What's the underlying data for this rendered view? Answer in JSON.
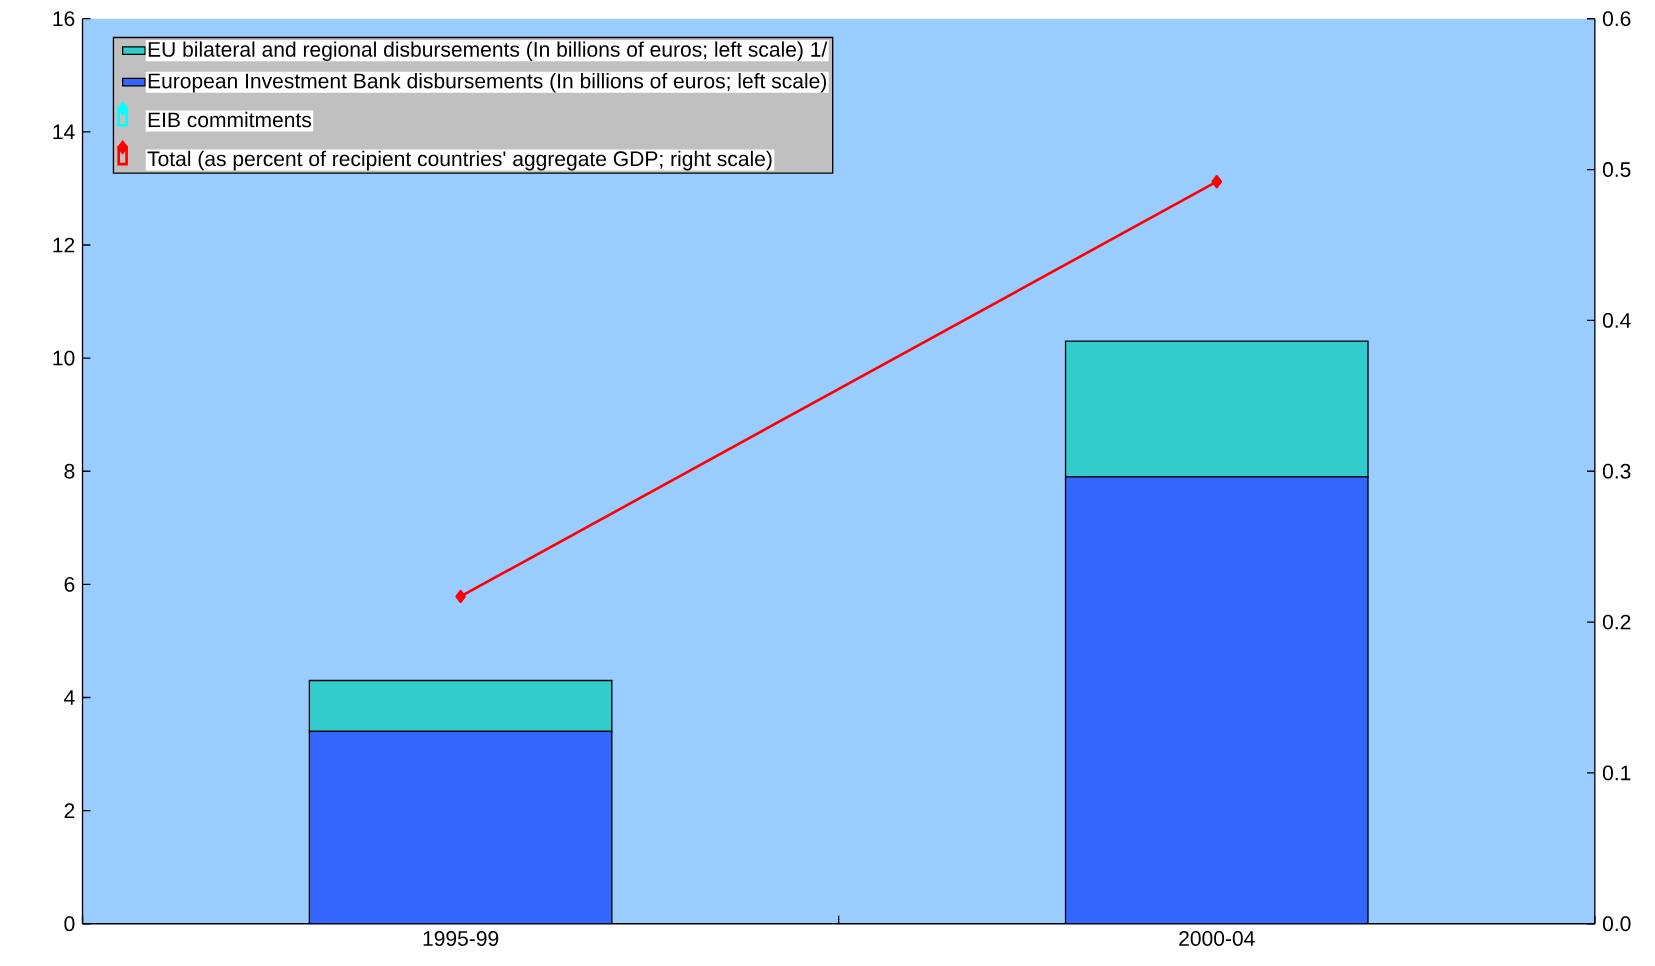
{
  "chart_data": {
    "type": "bar",
    "stacked": true,
    "categories": [
      "1995-99",
      "2000-04"
    ],
    "series": [
      {
        "name": "European  Investment Bank disbursements (In billions of euros; left scale)",
        "color": "#3366ff",
        "values": [
          3.4,
          7.9
        ]
      },
      {
        "name": "EU bilateral and regional disbursements (In billions of euros; left scale) 1/",
        "color": "#33cccc",
        "values": [
          0.9,
          2.4
        ]
      },
      {
        "name": "EIB commitments",
        "type": "line",
        "color": "#00ffff",
        "values": [
          null,
          null
        ]
      },
      {
        "name": "Total (as percent of recipient countries' aggregate GDP; right scale)",
        "type": "line",
        "axis": "y2",
        "color": "#ff0000",
        "values": [
          0.217,
          0.492
        ]
      }
    ],
    "ylim": [
      0,
      16
    ],
    "yticks": [
      0,
      2,
      4,
      6,
      8,
      10,
      12,
      14,
      16
    ],
    "y2lim": [
      0,
      0.6
    ],
    "y2ticks": [
      {
        "value": 0,
        "label": "0.0"
      },
      0.1,
      0.2,
      0.3,
      0.4,
      0.5,
      0.6
    ],
    "legend": "top left",
    "marker": "diamond"
  }
}
